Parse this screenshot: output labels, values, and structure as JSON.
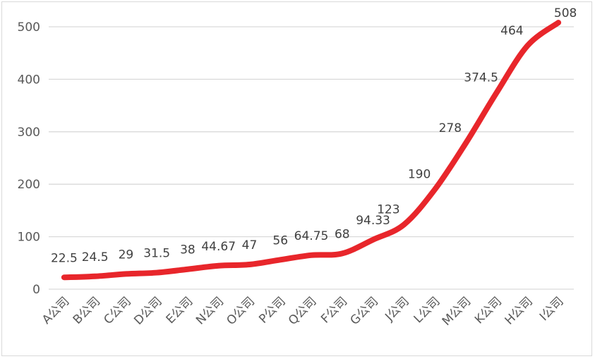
{
  "chart_data": {
    "type": "line",
    "title": "",
    "xlabel": "",
    "ylabel": "",
    "ylim": [
      0,
      500
    ],
    "yticks": [
      0,
      100,
      200,
      300,
      400,
      500
    ],
    "grid": true,
    "legend": "none",
    "line_color": "#e8262b",
    "categories": [
      "A公司",
      "B公司",
      "C公司",
      "D公司",
      "E公司",
      "N公司",
      "O公司",
      "P公司",
      "Q公司",
      "F公司",
      "G公司",
      "J公司",
      "L公司",
      "M公司",
      "K公司",
      "H公司",
      "I公司"
    ],
    "series": [
      {
        "values": [
          22.5,
          24.5,
          29,
          31.5,
          38,
          44.67,
          47,
          56,
          64.75,
          68,
          94.33,
          123,
          190,
          278,
          374.5,
          464,
          508
        ],
        "labels": [
          "22.5",
          "24.5",
          "29",
          "31.5",
          "38",
          "44.67",
          "47",
          "56",
          "64.75",
          "68",
          "94.33",
          "123",
          "190",
          "278",
          "374.5",
          "464",
          "508"
        ]
      }
    ]
  }
}
